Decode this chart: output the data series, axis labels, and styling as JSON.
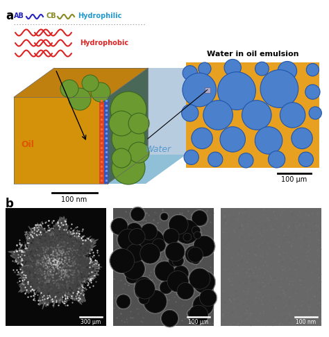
{
  "panel_a_label": "a",
  "panel_b_label": "b",
  "bg_color": "#ffffff",
  "oil_color": "#D4920A",
  "oil_top_color": "#C08010",
  "teal_face_color": "#4A6858",
  "water_right_color": "#B8CCE0",
  "water_bottom_color": "#90C0D8",
  "sphere_green": "#6A9A30",
  "sphere_dark": "#3A6820",
  "interface_red": "#DD4422",
  "interface_blue": "#3355BB",
  "AB_color": "#2222BB",
  "CB_color": "#888820",
  "hydrophilic_color": "#2299CC",
  "hydrophobic_color": "#DD2222",
  "dotted_line_color": "#AAAAAA",
  "water_text_color": "#5599CC",
  "oil_text_color": "#DD5500",
  "emulsion_oil_color": "#E8A020",
  "emulsion_water_color": "#4A80CC",
  "emulsion_border_color": "#2255AA",
  "water_in_oil_title": "Water in oil emulsion",
  "scale_100nm": "100 nm",
  "scale_100um_emulsion": "100 μm",
  "scale_300um": "300 μm",
  "scale_100um": "100 μm",
  "scale_100nm_b": "100 nm"
}
